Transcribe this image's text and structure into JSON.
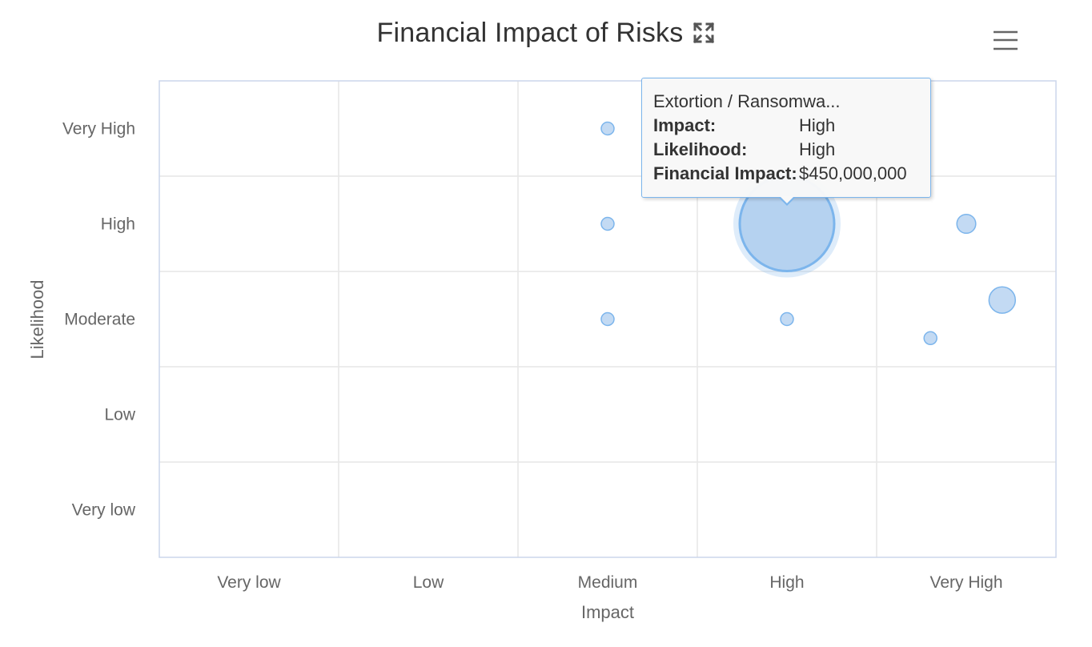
{
  "chart_data": {
    "type": "scatter",
    "title": "Financial Impact of Risks",
    "xlabel": "Impact",
    "ylabel": "Likelihood",
    "x_categories": [
      "Very low",
      "Low",
      "Medium",
      "High",
      "Very High"
    ],
    "y_categories": [
      "Very low",
      "Low",
      "Moderate",
      "High",
      "Very High"
    ],
    "grid": true,
    "series_color": "#7cb5ec",
    "points": [
      {
        "x": 2.0,
        "y": 4.0,
        "size": 8
      },
      {
        "x": 2.0,
        "y": 3.0,
        "size": 4
      },
      {
        "x": 2.0,
        "y": 2.0,
        "size": 2
      },
      {
        "x": 3.0,
        "y": 3.0,
        "size": 450,
        "highlighted": true
      },
      {
        "x": 3.0,
        "y": 2.0,
        "size": 2
      },
      {
        "x": 4.0,
        "y": 3.0,
        "size": 18
      },
      {
        "x": 4.2,
        "y": 2.2,
        "size": 35
      },
      {
        "x": 3.8,
        "y": 1.8,
        "size": 6
      }
    ]
  },
  "tooltip": {
    "name": "Extortion / Ransomwa...",
    "impact_label": "Impact:",
    "impact_value": "High",
    "likelihood_label": "Likelihood:",
    "likelihood_value": "High",
    "financial_label": "Financial Impact:",
    "financial_value": "$450,000,000"
  },
  "icons": {
    "title_icon": "expand-icon",
    "menu": "hamburger-menu-icon"
  }
}
